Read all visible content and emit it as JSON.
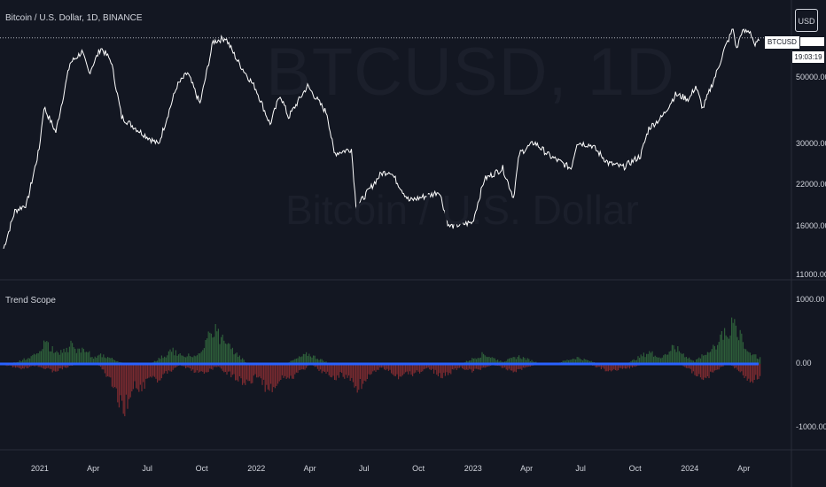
{
  "title": "Bitcoin / U.S. Dollar, 1D, BINANCE",
  "watermark": {
    "symbol": "BTCUSD, 1D",
    "name": "Bitcoin / U.S. Dollar"
  },
  "currency_button": "USD",
  "price_tag": {
    "symbol": "BTCUSD",
    "countdown": "19:03:19"
  },
  "indicator": {
    "name": "Trend Scope"
  },
  "colors": {
    "background": "#131722",
    "price_line": "#ffffff",
    "positive": "#2e5f3a",
    "negative": "#7d2b30",
    "zero_line": "#2962ff",
    "text": "#d1d4dc"
  },
  "chart_data": [
    {
      "type": "line",
      "series": [
        {
          "values_by_date": [
            [
              "2020-11-01",
              13500
            ],
            [
              "2020-11-20",
              18000
            ],
            [
              "2020-12-10",
              19000
            ],
            [
              "2020-12-31",
              29000
            ],
            [
              "2021-01-08",
              40000
            ],
            [
              "2021-01-28",
              33000
            ],
            [
              "2021-02-21",
              56000
            ],
            [
              "2021-03-13",
              61000
            ],
            [
              "2021-03-25",
              52000
            ],
            [
              "2021-04-14",
              63000
            ],
            [
              "2021-05-01",
              57000
            ],
            [
              "2021-05-19",
              37000
            ],
            [
              "2021-06-20",
              33000
            ],
            [
              "2021-07-20",
              30000
            ],
            [
              "2021-08-20",
              47000
            ],
            [
              "2021-09-07",
              52000
            ],
            [
              "2021-09-28",
              41000
            ],
            [
              "2021-10-20",
              66000
            ],
            [
              "2021-11-10",
              68000
            ],
            [
              "2021-11-30",
              57000
            ],
            [
              "2021-12-31",
              46000
            ],
            [
              "2022-01-24",
              35000
            ],
            [
              "2022-02-10",
              44000
            ],
            [
              "2022-02-24",
              37000
            ],
            [
              "2022-03-28",
              47000
            ],
            [
              "2022-04-30",
              38000
            ],
            [
              "2022-05-12",
              28000
            ],
            [
              "2022-06-10",
              29000
            ],
            [
              "2022-06-18",
              18500
            ],
            [
              "2022-07-30",
              24000
            ],
            [
              "2022-08-14",
              24500
            ],
            [
              "2022-09-15",
              19500
            ],
            [
              "2022-10-25",
              20500
            ],
            [
              "2022-11-05",
              21000
            ],
            [
              "2022-11-21",
              16000
            ],
            [
              "2022-12-31",
              16500
            ],
            [
              "2023-01-20",
              23000
            ],
            [
              "2023-02-20",
              25000
            ],
            [
              "2023-03-10",
              20000
            ],
            [
              "2023-03-20",
              28000
            ],
            [
              "2023-04-14",
              30500
            ],
            [
              "2023-05-10",
              27500
            ],
            [
              "2023-06-15",
              25000
            ],
            [
              "2023-06-25",
              30500
            ],
            [
              "2023-07-20",
              29800
            ],
            [
              "2023-08-17",
              26000
            ],
            [
              "2023-09-11",
              25200
            ],
            [
              "2023-10-10",
              27500
            ],
            [
              "2023-10-24",
              34000
            ],
            [
              "2023-11-15",
              37000
            ],
            [
              "2023-12-08",
              44000
            ],
            [
              "2023-12-31",
              42500
            ],
            [
              "2024-01-11",
              47000
            ],
            [
              "2024-01-23",
              39500
            ],
            [
              "2024-02-15",
              52000
            ],
            [
              "2024-02-28",
              62000
            ],
            [
              "2024-03-14",
              73000
            ],
            [
              "2024-03-20",
              62000
            ],
            [
              "2024-03-28",
              71000
            ],
            [
              "2024-04-12",
              71500
            ],
            [
              "2024-04-20",
              64000
            ],
            [
              "2024-04-27",
              66500
            ]
          ]
        }
      ],
      "y_scale": "log",
      "y_ticks": [
        "50000.00",
        "30000.00",
        "22000.00",
        "16000.00",
        "11000.00"
      ],
      "x_ticks": [
        "2021",
        "Apr",
        "Jul",
        "Oct",
        "2022",
        "Apr",
        "Jul",
        "Oct",
        "2023",
        "Apr",
        "Jul",
        "Oct",
        "2024",
        "Apr"
      ]
    },
    {
      "type": "bar",
      "title": "Trend Scope",
      "series": [
        {
          "color": "positive",
          "bars_by_date": [
            [
              "2020-12-20",
              150
            ],
            [
              "2021-01-10",
              400
            ],
            [
              "2021-02-05",
              250
            ],
            [
              "2021-02-22",
              380
            ],
            [
              "2021-03-12",
              300
            ],
            [
              "2021-04-15",
              180
            ],
            [
              "2021-08-12",
              260
            ],
            [
              "2021-09-05",
              180
            ],
            [
              "2021-10-08",
              340
            ],
            [
              "2021-10-22",
              720
            ],
            [
              "2021-11-08",
              420
            ],
            [
              "2022-03-28",
              200
            ],
            [
              "2023-01-18",
              200
            ],
            [
              "2023-03-18",
              150
            ],
            [
              "2023-06-24",
              130
            ],
            [
              "2023-10-24",
              240
            ],
            [
              "2023-12-05",
              330
            ],
            [
              "2024-02-10",
              320
            ],
            [
              "2024-02-28",
              600
            ],
            [
              "2024-03-14",
              800
            ],
            [
              "2024-04-15",
              180
            ]
          ]
        },
        {
          "color": "negative",
          "bars_by_date": [
            [
              "2020-12-01",
              -90
            ],
            [
              "2021-01-24",
              -150
            ],
            [
              "2021-05-15",
              -420
            ],
            [
              "2021-05-22",
              -900
            ],
            [
              "2021-06-20",
              -500
            ],
            [
              "2021-07-18",
              -300
            ],
            [
              "2021-09-28",
              -200
            ],
            [
              "2021-11-28",
              -300
            ],
            [
              "2021-12-12",
              -450
            ],
            [
              "2022-01-22",
              -550
            ],
            [
              "2022-02-24",
              -300
            ],
            [
              "2022-05-10",
              -300
            ],
            [
              "2022-06-18",
              -500
            ],
            [
              "2022-07-05",
              -220
            ],
            [
              "2022-08-28",
              -250
            ],
            [
              "2022-09-20",
              -220
            ],
            [
              "2022-11-10",
              -250
            ],
            [
              "2022-12-30",
              -150
            ],
            [
              "2023-03-10",
              -150
            ],
            [
              "2023-08-20",
              -150
            ],
            [
              "2023-09-11",
              -100
            ],
            [
              "2024-01-23",
              -300
            ],
            [
              "2024-04-15",
              -350
            ],
            [
              "2024-04-25",
              -200
            ]
          ]
        }
      ],
      "zero_line": 0,
      "y_ticks": [
        "1000.00",
        "0.00",
        "-1000.00"
      ]
    }
  ]
}
